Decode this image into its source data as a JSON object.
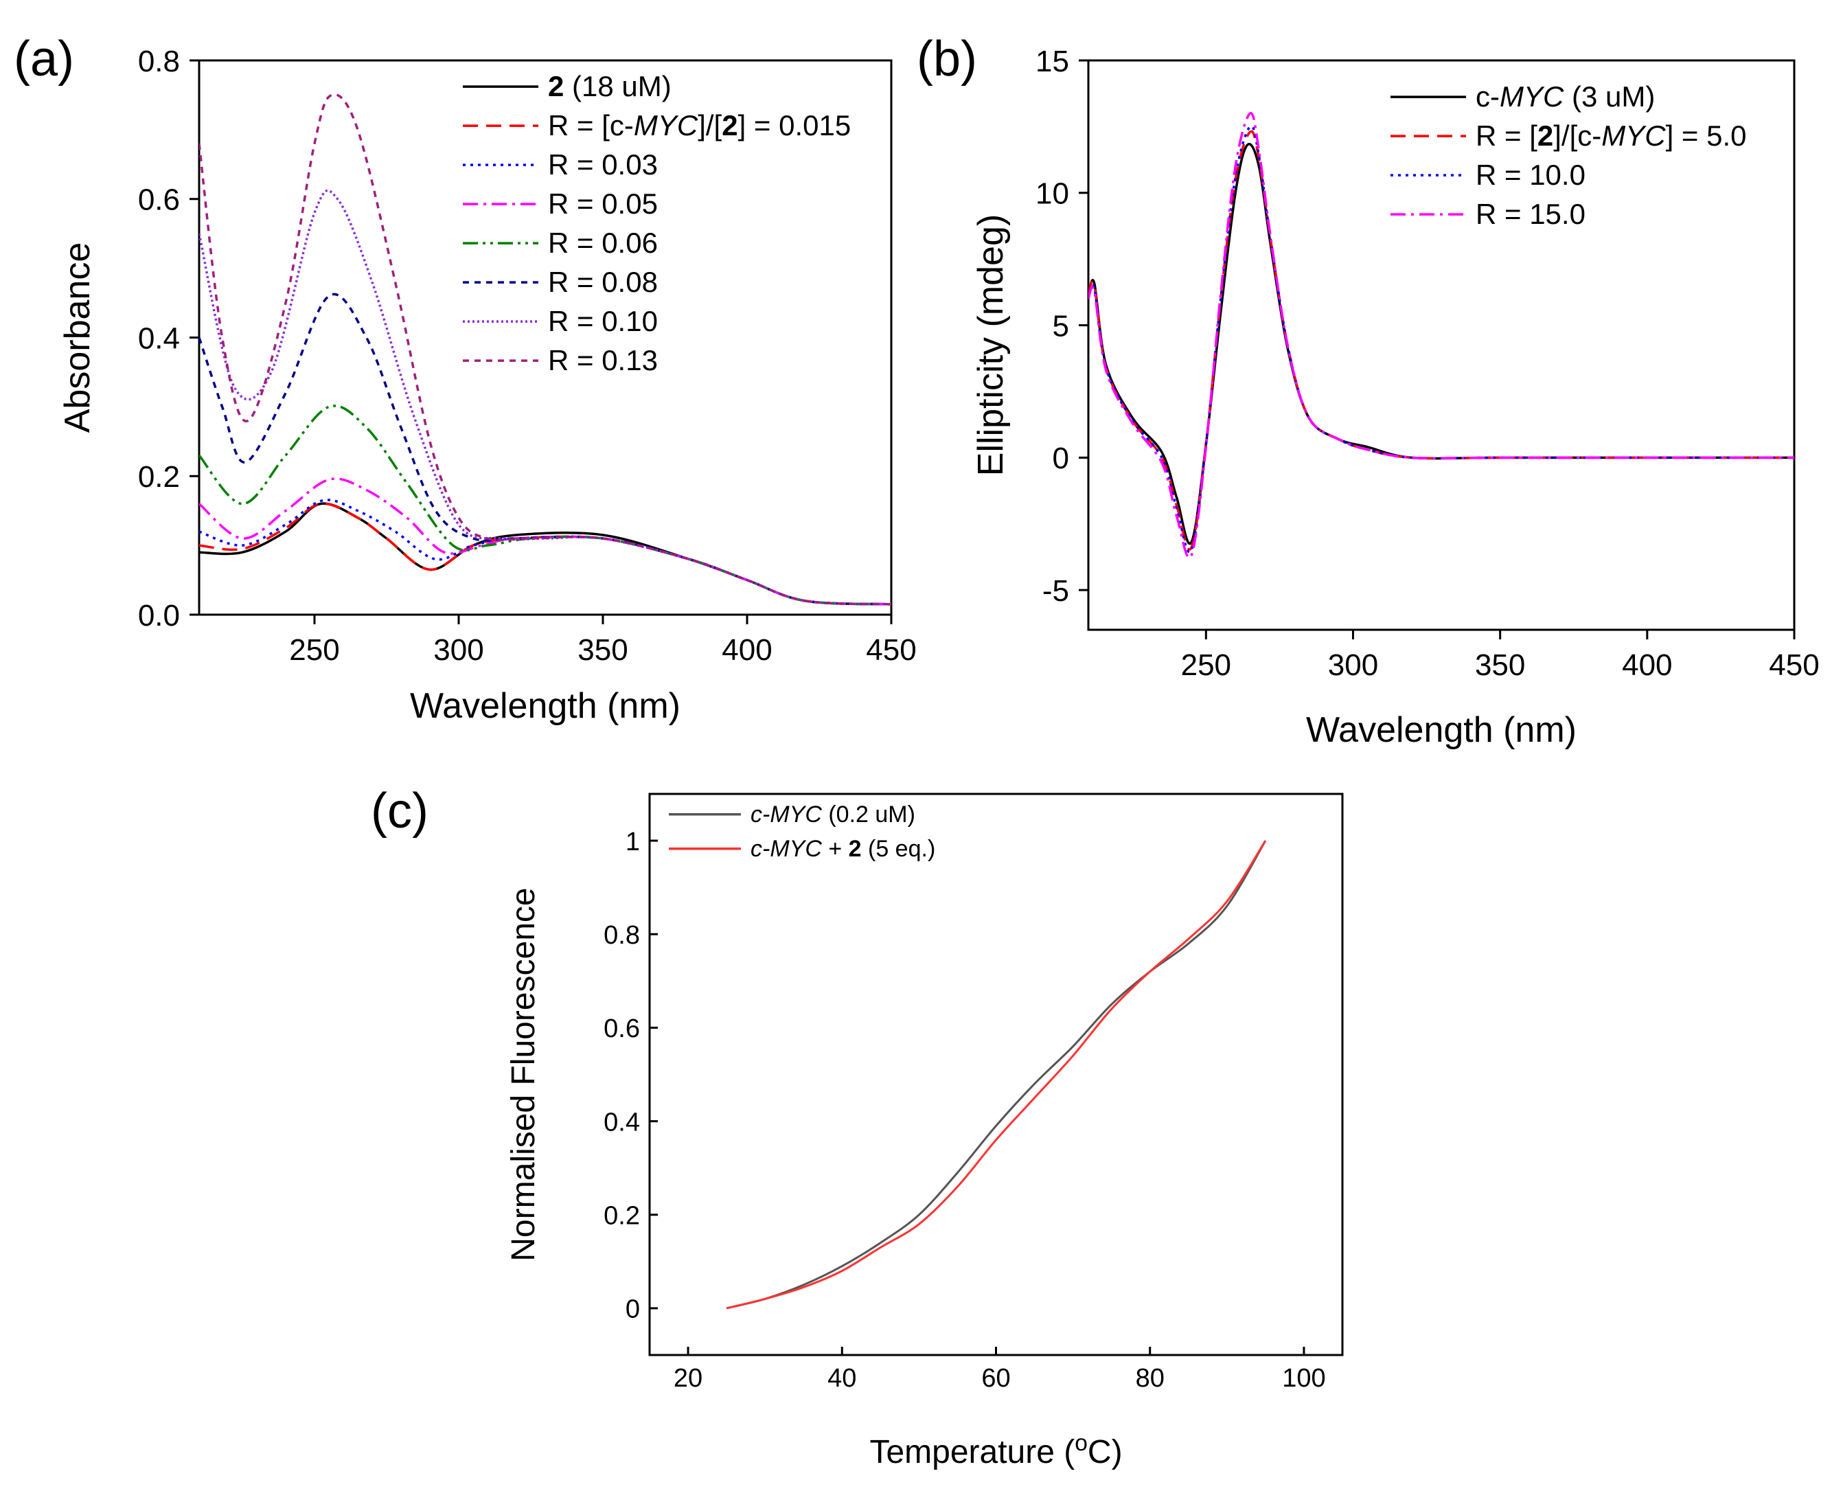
{
  "chart_data": [
    {
      "panel": "(a)",
      "type": "line",
      "xlabel": "Wavelength (nm)",
      "ylabel": "Absorbance",
      "xlim": [
        210,
        450
      ],
      "ylim": [
        0,
        0.8
      ],
      "xticks": [
        250,
        300,
        350,
        400,
        450
      ],
      "yticks": [
        0.0,
        0.2,
        0.4,
        0.6,
        0.8
      ],
      "xtick_labels": [
        "250",
        "300",
        "350",
        "400",
        "450"
      ],
      "ytick_labels": [
        "0.0",
        "0.2",
        "0.4",
        "0.6",
        "0.8"
      ],
      "legend_position": "top-right",
      "series": [
        {
          "name_parts": [
            {
              "t": "2",
              "b": true
            },
            {
              "t": " (18 uM)"
            }
          ],
          "color": "#000000",
          "dash": "solid",
          "x": [
            210,
            225,
            240,
            252,
            265,
            275,
            290,
            305,
            320,
            350,
            380,
            400,
            420,
            450
          ],
          "y": [
            0.09,
            0.09,
            0.12,
            0.16,
            0.14,
            0.11,
            0.065,
            0.1,
            0.115,
            0.115,
            0.08,
            0.05,
            0.02,
            0.015
          ]
        },
        {
          "name_parts": [
            {
              "t": "R = [c-"
            },
            {
              "t": "MYC",
              "i": true
            },
            {
              "t": "]/["
            },
            {
              "t": "2",
              "b": true
            },
            {
              "t": "] = 0.015"
            }
          ],
          "color": "#ff0000",
          "dash": "dash",
          "x": [
            210,
            225,
            240,
            252,
            265,
            275,
            290,
            305,
            320,
            350,
            380,
            400,
            420,
            450
          ],
          "y": [
            0.1,
            0.095,
            0.125,
            0.16,
            0.14,
            0.11,
            0.065,
            0.1,
            0.11,
            0.11,
            0.08,
            0.05,
            0.02,
            0.015
          ]
        },
        {
          "name_parts": [
            {
              "t": "R = 0.03"
            }
          ],
          "color": "#0000ff",
          "dash": "dot",
          "x": [
            210,
            225,
            240,
            253,
            265,
            278,
            292,
            305,
            320,
            350,
            380,
            400,
            420,
            450
          ],
          "y": [
            0.12,
            0.1,
            0.13,
            0.165,
            0.15,
            0.12,
            0.08,
            0.1,
            0.11,
            0.11,
            0.08,
            0.05,
            0.02,
            0.015
          ]
        },
        {
          "name_parts": [
            {
              "t": "R = 0.05"
            }
          ],
          "color": "#ff00ff",
          "dash": "dashdot",
          "x": [
            210,
            225,
            240,
            255,
            268,
            282,
            295,
            308,
            320,
            350,
            380,
            400,
            420,
            450
          ],
          "y": [
            0.16,
            0.11,
            0.15,
            0.195,
            0.18,
            0.14,
            0.09,
            0.1,
            0.11,
            0.11,
            0.08,
            0.05,
            0.02,
            0.015
          ]
        },
        {
          "name_parts": [
            {
              "t": "R = 0.06"
            }
          ],
          "color": "#008000",
          "dash": "dashdotdot",
          "x": [
            210,
            225,
            240,
            255,
            268,
            282,
            298,
            310,
            325,
            350,
            380,
            400,
            420,
            450
          ],
          "y": [
            0.23,
            0.16,
            0.23,
            0.3,
            0.27,
            0.19,
            0.1,
            0.1,
            0.11,
            0.11,
            0.08,
            0.05,
            0.02,
            0.015
          ]
        },
        {
          "name_parts": [
            {
              "t": "R = 0.08"
            }
          ],
          "color": "#00008b",
          "dash": "shortdash",
          "x": [
            210,
            218,
            226,
            240,
            255,
            268,
            280,
            292,
            305,
            320,
            350,
            380,
            400,
            420,
            450
          ],
          "y": [
            0.4,
            0.3,
            0.22,
            0.32,
            0.46,
            0.4,
            0.27,
            0.15,
            0.11,
            0.11,
            0.11,
            0.08,
            0.05,
            0.02,
            0.015
          ]
        },
        {
          "name_parts": [
            {
              "t": "R = 0.10"
            }
          ],
          "color": "#8a2be2",
          "dash": "fine",
          "x": [
            210,
            222,
            235,
            250,
            258,
            270,
            285,
            300,
            315,
            330,
            350,
            380,
            400,
            420,
            450
          ],
          "y": [
            0.55,
            0.33,
            0.35,
            0.58,
            0.6,
            0.48,
            0.28,
            0.13,
            0.11,
            0.11,
            0.11,
            0.08,
            0.05,
            0.02,
            0.015
          ]
        },
        {
          "name_parts": [
            {
              "t": "R = 0.13"
            }
          ],
          "color": "#a0207d",
          "dash": "shortdash",
          "x": [
            210,
            218,
            227,
            240,
            250,
            256,
            265,
            278,
            290,
            300,
            310,
            325,
            350,
            380,
            400,
            420,
            450
          ],
          "y": [
            0.68,
            0.4,
            0.28,
            0.45,
            0.68,
            0.75,
            0.7,
            0.48,
            0.25,
            0.14,
            0.11,
            0.11,
            0.11,
            0.08,
            0.05,
            0.02,
            0.015
          ]
        }
      ]
    },
    {
      "panel": "(b)",
      "type": "line",
      "xlabel": "Wavelength (nm)",
      "ylabel": "Ellipticity (mdeg)",
      "xlim": [
        210,
        450
      ],
      "ylim": [
        -6.5,
        15
      ],
      "xticks": [
        250,
        300,
        350,
        400,
        450
      ],
      "yticks": [
        -5,
        0,
        5,
        10,
        15
      ],
      "xtick_labels": [
        "250",
        "300",
        "350",
        "400",
        "450"
      ],
      "ytick_labels": [
        "-5",
        "0",
        "5",
        "10",
        "15"
      ],
      "legend_position": "top-right",
      "series": [
        {
          "name_parts": [
            {
              "t": "c-"
            },
            {
              "t": "MYC",
              "i": true
            },
            {
              "t": " (3 uM)"
            }
          ],
          "color": "#000000",
          "dash": "solid",
          "x": [
            210,
            212,
            216,
            225,
            235,
            240,
            245,
            250,
            255,
            260,
            264,
            268,
            272,
            278,
            285,
            295,
            305,
            320,
            350,
            400,
            450
          ],
          "y": [
            6.0,
            6.6,
            3.5,
            1.5,
            0.2,
            -1.5,
            -3.2,
            0.5,
            5.5,
            10.0,
            11.8,
            11.0,
            8.0,
            4.0,
            1.5,
            0.7,
            0.4,
            0.0,
            0.0,
            0.0,
            0.0
          ]
        },
        {
          "name_parts": [
            {
              "t": "R = ["
            },
            {
              "t": "2",
              "b": true
            },
            {
              "t": "]/[c-"
            },
            {
              "t": "MYC",
              "i": true
            },
            {
              "t": "] = 5.0"
            }
          ],
          "color": "#ff0000",
          "dash": "dash",
          "x": [
            210,
            212,
            216,
            225,
            235,
            240,
            245,
            250,
            255,
            260,
            265,
            268,
            272,
            278,
            285,
            295,
            305,
            320,
            350,
            400,
            450
          ],
          "y": [
            6.1,
            6.5,
            3.4,
            1.4,
            0.0,
            -1.8,
            -3.4,
            0.5,
            6.0,
            10.5,
            12.3,
            11.3,
            8.2,
            4.1,
            1.5,
            0.7,
            0.3,
            0.0,
            0.0,
            0.0,
            0.0
          ]
        },
        {
          "name_parts": [
            {
              "t": "R = 10.0"
            }
          ],
          "color": "#0000ff",
          "dash": "dot",
          "x": [
            210,
            212,
            216,
            225,
            235,
            240,
            245,
            250,
            255,
            260,
            265,
            268,
            272,
            278,
            285,
            295,
            305,
            320,
            350,
            400,
            450
          ],
          "y": [
            6.0,
            6.4,
            3.4,
            1.4,
            0.0,
            -1.9,
            -3.5,
            0.5,
            6.0,
            10.6,
            12.5,
            11.4,
            8.2,
            4.1,
            1.5,
            0.7,
            0.3,
            0.0,
            0.0,
            0.0,
            0.0
          ]
        },
        {
          "name_parts": [
            {
              "t": "R = 15.0"
            }
          ],
          "color": "#ff00ff",
          "dash": "dashdot",
          "x": [
            210,
            212,
            216,
            225,
            235,
            240,
            245,
            250,
            255,
            260,
            265,
            268,
            272,
            278,
            285,
            295,
            305,
            320,
            350,
            400,
            450
          ],
          "y": [
            6.0,
            6.3,
            3.3,
            1.3,
            -0.2,
            -2.2,
            -3.7,
            0.4,
            6.2,
            11.0,
            13.0,
            11.6,
            8.3,
            4.1,
            1.5,
            0.7,
            0.3,
            0.0,
            0.0,
            0.0,
            0.0
          ]
        }
      ]
    },
    {
      "panel": "(c)",
      "type": "line",
      "xlabel_parts": [
        {
          "t": "Temperature ("
        },
        {
          "t": "o",
          "sup": true
        },
        {
          "t": "C)"
        }
      ],
      "ylabel": "Normalised Fluorescence",
      "xlim": [
        15,
        105
      ],
      "ylim": [
        -0.1,
        1.1
      ],
      "xticks": [
        20,
        40,
        60,
        80,
        100
      ],
      "yticks": [
        0,
        0.2,
        0.4,
        0.6,
        0.8,
        1
      ],
      "xtick_labels": [
        "20",
        "40",
        "60",
        "80",
        "100"
      ],
      "ytick_labels": [
        "0",
        "0.2",
        "0.4",
        "0.6",
        "0.8",
        "1"
      ],
      "legend_position": "top-left",
      "series": [
        {
          "name_parts": [
            {
              "t": "c-MYC",
              "i": true
            },
            {
              "t": " (0.2 uM)"
            }
          ],
          "color": "#555555",
          "dash": "solid",
          "x": [
            25,
            30,
            35,
            40,
            45,
            50,
            55,
            60,
            65,
            70,
            75,
            80,
            85,
            90,
            95
          ],
          "y": [
            0.0,
            0.02,
            0.05,
            0.09,
            0.14,
            0.2,
            0.29,
            0.39,
            0.48,
            0.56,
            0.65,
            0.72,
            0.78,
            0.86,
            1.0
          ]
        },
        {
          "name_parts": [
            {
              "t": "c-MYC",
              "i": true
            },
            {
              "t": " + "
            },
            {
              "t": "2",
              "b": true
            },
            {
              "t": " (5 eq.)"
            }
          ],
          "color": "#ff3333",
          "dash": "solid",
          "x": [
            25,
            30,
            35,
            40,
            45,
            50,
            55,
            60,
            65,
            70,
            75,
            80,
            85,
            90,
            95
          ],
          "y": [
            0.0,
            0.02,
            0.045,
            0.08,
            0.13,
            0.18,
            0.26,
            0.36,
            0.45,
            0.54,
            0.64,
            0.72,
            0.79,
            0.87,
            1.0
          ]
        }
      ]
    }
  ]
}
